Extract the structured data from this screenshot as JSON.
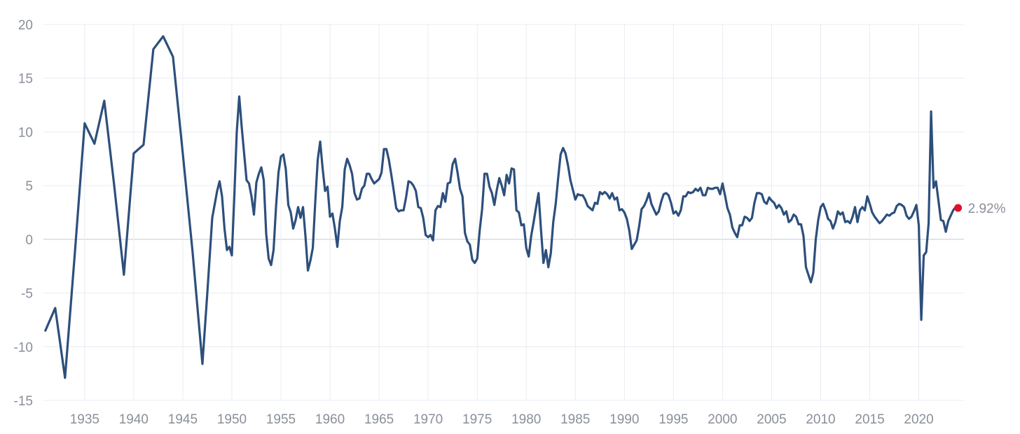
{
  "chart_data": {
    "type": "line",
    "title": "",
    "xlabel": "",
    "ylabel": "",
    "xlim": [
      1930.8,
      2024.6
    ],
    "ylim": [
      -15,
      20
    ],
    "y_ticks": [
      20,
      15,
      10,
      5,
      0,
      -5,
      -10,
      -15
    ],
    "x_ticks": [
      1935,
      1940,
      1945,
      1950,
      1955,
      1960,
      1965,
      1970,
      1975,
      1980,
      1985,
      1990,
      1995,
      2000,
      2005,
      2010,
      2015,
      2020
    ],
    "grid": true,
    "colors": {
      "line": "#2d4f7c",
      "last_point": "#e0112b"
    },
    "last_point": {
      "x": 2024.0,
      "y": 2.92,
      "label": "2.92%"
    },
    "series": [
      {
        "x": [
          1931.0,
          1932.0,
          1933.0,
          1934.0,
          1935.0,
          1936.0,
          1937.0,
          1938.0,
          1939.0,
          1940.0,
          1941.0,
          1942.0,
          1943.0,
          1944.0,
          1945.0,
          1946.0,
          1947.0,
          1947.5,
          1948.0,
          1948.5,
          1948.75,
          1949.0,
          1949.25,
          1949.5,
          1949.75,
          1950.0,
          1950.25,
          1950.5,
          1950.75,
          1951.0,
          1951.25,
          1951.5,
          1951.75,
          1952.0,
          1952.25,
          1952.5,
          1952.75,
          1953.0,
          1953.25,
          1953.5,
          1953.75,
          1954.0,
          1954.25,
          1954.5,
          1954.75,
          1955.0,
          1955.25,
          1955.5,
          1955.75,
          1956.0,
          1956.25,
          1956.5,
          1956.75,
          1957.0,
          1957.25,
          1957.5,
          1957.75,
          1958.0,
          1958.25,
          1958.5,
          1958.75,
          1959.0,
          1959.25,
          1959.5,
          1959.75,
          1960.0,
          1960.25,
          1960.5,
          1960.75,
          1961.0,
          1961.25,
          1961.5,
          1961.75,
          1962.0,
          1962.25,
          1962.5,
          1962.75,
          1963.0,
          1963.25,
          1963.5,
          1963.75,
          1964.0,
          1964.25,
          1964.5,
          1964.75,
          1965.0,
          1965.25,
          1965.5,
          1965.75,
          1966.0,
          1966.25,
          1966.5,
          1966.75,
          1967.0,
          1967.25,
          1967.5,
          1967.75,
          1968.0,
          1968.25,
          1968.5,
          1968.75,
          1969.0,
          1969.25,
          1969.5,
          1969.75,
          1970.0,
          1970.25,
          1970.5,
          1970.75,
          1971.0,
          1971.25,
          1971.5,
          1971.75,
          1972.0,
          1972.25,
          1972.5,
          1972.75,
          1973.0,
          1973.25,
          1973.5,
          1973.75,
          1974.0,
          1974.25,
          1974.5,
          1974.75,
          1975.0,
          1975.25,
          1975.5,
          1975.75,
          1976.0,
          1976.25,
          1976.5,
          1976.75,
          1977.0,
          1977.25,
          1977.5,
          1977.75,
          1978.0,
          1978.25,
          1978.5,
          1978.75,
          1979.0,
          1979.25,
          1979.5,
          1979.75,
          1980.0,
          1980.25,
          1980.5,
          1980.75,
          1981.0,
          1981.25,
          1981.5,
          1981.75,
          1982.0,
          1982.25,
          1982.5,
          1982.75,
          1983.0,
          1983.25,
          1983.5,
          1983.75,
          1984.0,
          1984.25,
          1984.5,
          1984.75,
          1985.0,
          1985.25,
          1985.5,
          1985.75,
          1986.0,
          1986.25,
          1986.5,
          1986.75,
          1987.0,
          1987.25,
          1987.5,
          1987.75,
          1988.0,
          1988.25,
          1988.5,
          1988.75,
          1989.0,
          1989.25,
          1989.5,
          1989.75,
          1990.0,
          1990.25,
          1990.5,
          1990.75,
          1991.0,
          1991.25,
          1991.5,
          1991.75,
          1992.0,
          1992.25,
          1992.5,
          1992.75,
          1993.0,
          1993.25,
          1993.5,
          1993.75,
          1994.0,
          1994.25,
          1994.5,
          1994.75,
          1995.0,
          1995.25,
          1995.5,
          1995.75,
          1996.0,
          1996.25,
          1996.5,
          1996.75,
          1997.0,
          1997.25,
          1997.5,
          1997.75,
          1998.0,
          1998.25,
          1998.5,
          1998.75,
          1999.0,
          1999.25,
          1999.5,
          1999.75,
          2000.0,
          2000.25,
          2000.5,
          2000.75,
          2001.0,
          2001.25,
          2001.5,
          2001.75,
          2002.0,
          2002.25,
          2002.5,
          2002.75,
          2003.0,
          2003.25,
          2003.5,
          2003.75,
          2004.0,
          2004.25,
          2004.5,
          2004.75,
          2005.0,
          2005.25,
          2005.5,
          2005.75,
          2006.0,
          2006.25,
          2006.5,
          2006.75,
          2007.0,
          2007.25,
          2007.5,
          2007.75,
          2008.0,
          2008.25,
          2008.5,
          2008.75,
          2009.0,
          2009.25,
          2009.5,
          2009.75,
          2010.0,
          2010.25,
          2010.5,
          2010.75,
          2011.0,
          2011.25,
          2011.5,
          2011.75,
          2012.0,
          2012.25,
          2012.5,
          2012.75,
          2013.0,
          2013.25,
          2013.5,
          2013.75,
          2014.0,
          2014.25,
          2014.5,
          2014.75,
          2015.0,
          2015.25,
          2015.5,
          2015.75,
          2016.0,
          2016.25,
          2016.5,
          2016.75,
          2017.0,
          2017.25,
          2017.5,
          2017.75,
          2018.0,
          2018.25,
          2018.5,
          2018.75,
          2019.0,
          2019.25,
          2019.5,
          2019.75,
          2020.0,
          2020.25,
          2020.5,
          2020.75,
          2021.0,
          2021.25,
          2021.5,
          2021.75,
          2022.0,
          2022.25,
          2022.5,
          2022.75,
          2023.0,
          2023.25,
          2023.5,
          2023.75,
          2024.0
        ],
        "values": [
          -8.5,
          -6.4,
          -12.9,
          -1.3,
          10.8,
          8.9,
          12.9,
          5.1,
          -3.3,
          8.0,
          8.8,
          17.7,
          18.9,
          17.0,
          8.0,
          -1.2,
          -11.6,
          -5.0,
          2.0,
          4.5,
          5.4,
          4.0,
          1.0,
          -1.0,
          -0.7,
          -1.5,
          4.0,
          10.0,
          13.3,
          10.5,
          8.0,
          5.5,
          5.2,
          4.0,
          2.3,
          5.3,
          6.1,
          6.7,
          5.5,
          0.5,
          -1.8,
          -2.4,
          -1.0,
          3.0,
          6.2,
          7.7,
          7.9,
          6.5,
          3.2,
          2.5,
          1.0,
          1.8,
          3.0,
          2.0,
          3.0,
          0.3,
          -2.9,
          -2.0,
          -0.8,
          3.5,
          7.4,
          9.1,
          6.6,
          4.5,
          4.9,
          2.1,
          2.4,
          1.0,
          -0.7,
          1.7,
          3.0,
          6.5,
          7.5,
          6.9,
          6.1,
          4.3,
          3.7,
          3.8,
          4.7,
          5.0,
          6.1,
          6.1,
          5.6,
          5.2,
          5.4,
          5.6,
          6.2,
          8.4,
          8.4,
          7.4,
          6.0,
          4.5,
          2.9,
          2.6,
          2.7,
          2.7,
          3.9,
          5.4,
          5.3,
          5.0,
          4.5,
          3.0,
          2.9,
          2.0,
          0.4,
          0.2,
          0.4,
          -0.1,
          2.7,
          3.1,
          3.0,
          4.3,
          3.5,
          5.2,
          5.3,
          7.0,
          7.5,
          6.2,
          4.7,
          4.0,
          0.6,
          -0.2,
          -0.5,
          -1.9,
          -2.2,
          -1.8,
          0.8,
          2.8,
          6.1,
          6.1,
          4.9,
          4.3,
          3.2,
          4.6,
          5.7,
          5.0,
          4.1,
          6.0,
          5.2,
          6.6,
          6.5,
          2.7,
          2.5,
          1.3,
          1.4,
          -0.8,
          -1.6,
          0.3,
          1.6,
          3.0,
          4.3,
          0.9,
          -2.2,
          -1.0,
          -2.6,
          -1.3,
          1.6,
          3.3,
          5.7,
          7.9,
          8.5,
          8.0,
          6.9,
          5.5,
          4.6,
          3.7,
          4.2,
          4.1,
          4.1,
          3.7,
          3.1,
          2.9,
          2.7,
          3.4,
          3.3,
          4.4,
          4.2,
          4.4,
          4.2,
          3.8,
          4.3,
          3.7,
          3.9,
          2.7,
          2.8,
          2.5,
          1.9,
          0.8,
          -0.9,
          -0.5,
          -0.1,
          1.2,
          2.8,
          3.1,
          3.6,
          4.3,
          3.3,
          2.8,
          2.3,
          2.6,
          3.5,
          4.2,
          4.3,
          4.1,
          3.4,
          2.4,
          2.6,
          2.2,
          2.7,
          4.0,
          4.0,
          4.4,
          4.3,
          4.4,
          4.7,
          4.5,
          4.8,
          4.1,
          4.1,
          4.8,
          4.7,
          4.7,
          4.8,
          4.8,
          4.2,
          5.2,
          4.1,
          2.9,
          2.3,
          1.1,
          0.6,
          0.2,
          1.3,
          1.3,
          2.1,
          2.0,
          1.7,
          2.0,
          3.4,
          4.3,
          4.3,
          4.2,
          3.5,
          3.3,
          3.9,
          3.6,
          3.4,
          2.9,
          3.2,
          2.9,
          2.3,
          2.6,
          1.6,
          1.8,
          2.3,
          2.1,
          1.4,
          1.4,
          0.3,
          -2.6,
          -3.3,
          -4.0,
          -3.1,
          0.0,
          1.8,
          3.0,
          3.3,
          2.7,
          1.9,
          1.7,
          1.0,
          1.6,
          2.6,
          2.3,
          2.5,
          1.6,
          1.7,
          1.5,
          2.1,
          3.0,
          1.6,
          2.7,
          3.0,
          2.7,
          4.0,
          3.3,
          2.5,
          2.1,
          1.8,
          1.5,
          1.7,
          2.0,
          2.3,
          2.2,
          2.4,
          2.5,
          3.1,
          3.3,
          3.2,
          3.0,
          2.2,
          1.9,
          2.1,
          2.6,
          3.2,
          1.3,
          -7.5,
          -1.5,
          -1.2,
          1.5,
          11.9,
          4.8,
          5.4,
          3.6,
          1.8,
          1.7,
          0.7,
          1.7,
          2.2,
          2.7,
          3.0,
          2.92
        ]
      }
    ]
  }
}
